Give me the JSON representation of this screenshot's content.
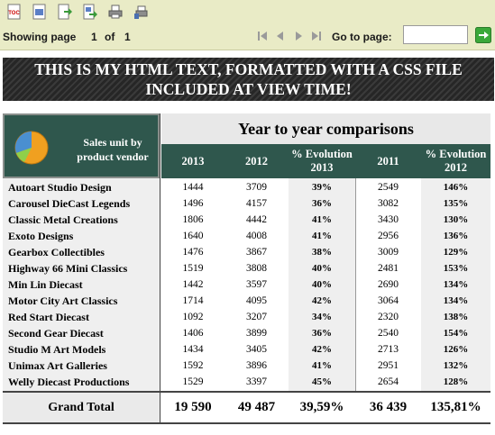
{
  "toolbar": {
    "icons": [
      "toc-icon",
      "export-icon",
      "export-data-icon",
      "export-report-icon",
      "print-icon",
      "print-server-icon"
    ]
  },
  "pager": {
    "showing_label": "Showing page",
    "current_page": "1",
    "of_label": "of",
    "total_pages": "1",
    "goto_label": "Go to page:",
    "goto_value": ""
  },
  "banner": {
    "line1": "THIS IS MY HTML TEXT, FORMATTED WITH A CSS FILE",
    "line2": "INCLUDED AT VIEW TIME!"
  },
  "report": {
    "corner_line1": "Sales unit by",
    "corner_line2": "product vendor",
    "group_header": "Year to year comparisons",
    "columns": [
      "2013",
      "2012",
      "% Evolution 2013",
      "2011",
      "% Evolution 2012"
    ],
    "rows": [
      {
        "vendor": "Autoart Studio Design",
        "y2013": "1444",
        "y2012": "3709",
        "evo2013": "39%",
        "y2011": "2549",
        "evo2012": "146%"
      },
      {
        "vendor": "Carousel DieCast Legends",
        "y2013": "1496",
        "y2012": "4157",
        "evo2013": "36%",
        "y2011": "3082",
        "evo2012": "135%"
      },
      {
        "vendor": "Classic Metal Creations",
        "y2013": "1806",
        "y2012": "4442",
        "evo2013": "41%",
        "y2011": "3430",
        "evo2012": "130%"
      },
      {
        "vendor": "Exoto Designs",
        "y2013": "1640",
        "y2012": "4008",
        "evo2013": "41%",
        "y2011": "2956",
        "evo2012": "136%"
      },
      {
        "vendor": "Gearbox Collectibles",
        "y2013": "1476",
        "y2012": "3867",
        "evo2013": "38%",
        "y2011": "3009",
        "evo2012": "129%"
      },
      {
        "vendor": "Highway 66 Mini Classics",
        "y2013": "1519",
        "y2012": "3808",
        "evo2013": "40%",
        "y2011": "2481",
        "evo2012": "153%"
      },
      {
        "vendor": "Min Lin Diecast",
        "y2013": "1442",
        "y2012": "3597",
        "evo2013": "40%",
        "y2011": "2690",
        "evo2012": "134%"
      },
      {
        "vendor": "Motor City Art Classics",
        "y2013": "1714",
        "y2012": "4095",
        "evo2013": "42%",
        "y2011": "3064",
        "evo2012": "134%"
      },
      {
        "vendor": "Red Start Diecast",
        "y2013": "1092",
        "y2012": "3207",
        "evo2013": "34%",
        "y2011": "2320",
        "evo2012": "138%"
      },
      {
        "vendor": "Second Gear Diecast",
        "y2013": "1406",
        "y2012": "3899",
        "evo2013": "36%",
        "y2011": "2540",
        "evo2012": "154%"
      },
      {
        "vendor": "Studio M Art Models",
        "y2013": "1434",
        "y2012": "3405",
        "evo2013": "42%",
        "y2011": "2713",
        "evo2012": "126%"
      },
      {
        "vendor": "Unimax Art Galleries",
        "y2013": "1592",
        "y2012": "3896",
        "evo2013": "41%",
        "y2011": "2951",
        "evo2012": "132%"
      },
      {
        "vendor": "Welly Diecast Productions",
        "y2013": "1529",
        "y2012": "3397",
        "evo2013": "45%",
        "y2011": "2654",
        "evo2012": "128%"
      }
    ],
    "total": {
      "label": "Grand Total",
      "y2013": "19 590",
      "y2012": "49 487",
      "evo2013": "39,59%",
      "y2011": "36 439",
      "evo2012": "135,81%"
    }
  },
  "colors": {
    "header_green": "#2f574d",
    "toolbar_bg": "#e9ebc6",
    "go_button": "#3aa83a"
  }
}
